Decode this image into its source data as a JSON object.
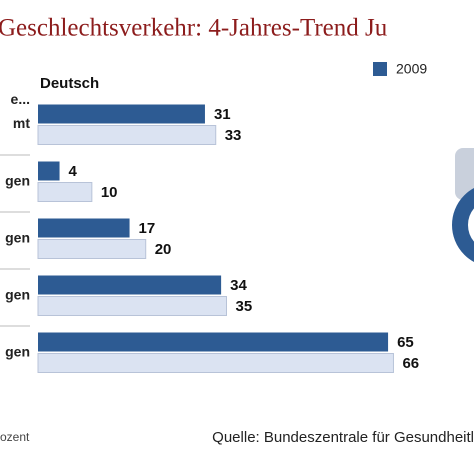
{
  "chart_data": {
    "type": "bar",
    "orientation": "horizontal",
    "title": "Geschlechtsverkehr: 4-Jahres-Trend Ju",
    "subtitle": "Deutsch",
    "categories": [
      "e...\nmt",
      "gen",
      "gen",
      "gen",
      "gen"
    ],
    "series": [
      {
        "name": "2009",
        "color": "#2d5b93",
        "values": [
          31,
          4,
          17,
          34,
          65
        ]
      },
      {
        "color": "#dbe3f2",
        "values": [
          33,
          10,
          20,
          35,
          66
        ]
      }
    ],
    "xlim": [
      0,
      70
    ],
    "footnote": "ozent",
    "source": "Quelle: Bundeszentrale für Gesundheitl"
  }
}
